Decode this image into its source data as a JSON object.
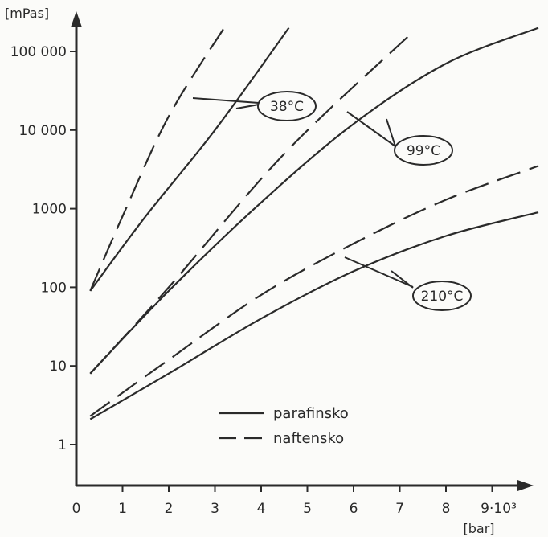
{
  "chart_data": {
    "type": "line",
    "title": "",
    "xlabel": "[bar]",
    "ylabel": "[mPas]",
    "x_multiplier_label": "9·10³",
    "xlim": [
      0,
      10
    ],
    "ylim": [
      0.1,
      200000
    ],
    "yscale": "log",
    "grid": false,
    "x_ticks": [
      "0",
      "1",
      "2",
      "3",
      "4",
      "5",
      "6",
      "7",
      "8"
    ],
    "y_ticks": [
      {
        "value": 1,
        "label": "1"
      },
      {
        "value": 10,
        "label": "10"
      },
      {
        "value": 100,
        "label": "100"
      },
      {
        "value": 1000,
        "label": "1000"
      },
      {
        "value": 10000,
        "label": "10 000"
      },
      {
        "value": 100000,
        "label": "100 000"
      }
    ],
    "legend": {
      "placement": "bottom-center",
      "entries": [
        {
          "label": "parafinsko",
          "style": "solid"
        },
        {
          "label": "naftensko",
          "style": "dashed"
        }
      ]
    },
    "annotations": [
      {
        "label": "38°C"
      },
      {
        "label": "99°C"
      },
      {
        "label": "210°C"
      }
    ],
    "series": [
      {
        "style": "dashed",
        "group": "38°C",
        "points": [
          [
            0.3,
            90
          ],
          [
            1.0,
            800
          ],
          [
            2.0,
            15000
          ],
          [
            3.2,
            200000
          ]
        ]
      },
      {
        "style": "solid",
        "group": "38°C",
        "points": [
          [
            0.3,
            90
          ],
          [
            1.5,
            800
          ],
          [
            3.0,
            10000
          ],
          [
            4.6,
            200000
          ]
        ]
      },
      {
        "style": "dashed",
        "group": "99°C",
        "points": [
          [
            0.3,
            8
          ],
          [
            2.0,
            100
          ],
          [
            4.5,
            5000
          ],
          [
            7.3,
            180000
          ]
        ]
      },
      {
        "style": "solid",
        "group": "99°C",
        "points": [
          [
            0.3,
            8
          ],
          [
            2.0,
            90
          ],
          [
            4.0,
            1200
          ],
          [
            6.0,
            12000
          ],
          [
            8.0,
            70000
          ],
          [
            10.0,
            200000
          ]
        ]
      },
      {
        "style": "dashed",
        "group": "210°C",
        "points": [
          [
            0.3,
            2.3
          ],
          [
            2.0,
            12
          ],
          [
            4.0,
            80
          ],
          [
            6.0,
            360
          ],
          [
            8.0,
            1300
          ],
          [
            10.0,
            3500
          ]
        ]
      },
      {
        "style": "solid",
        "group": "210°C",
        "points": [
          [
            0.3,
            2.1
          ],
          [
            2.0,
            8
          ],
          [
            4.0,
            40
          ],
          [
            6.0,
            160
          ],
          [
            8.0,
            450
          ],
          [
            10.0,
            900
          ]
        ]
      }
    ]
  }
}
